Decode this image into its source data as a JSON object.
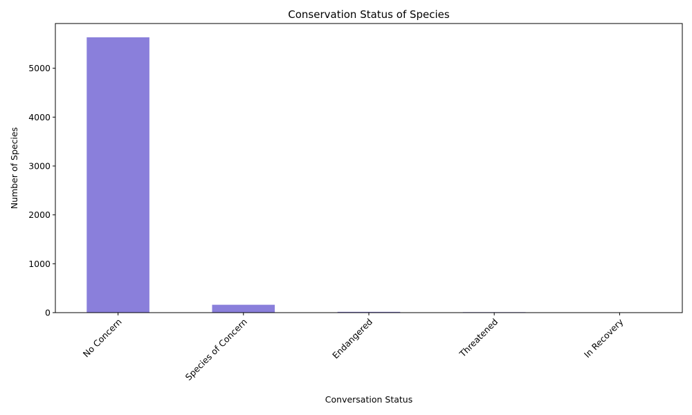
{
  "chart_data": {
    "type": "bar",
    "title": "Conservation Status of Species",
    "xlabel": "Conversation Status",
    "ylabel": "Number of Species",
    "categories": [
      "No Concern",
      "Species of Concern",
      "Endangered",
      "Threatened",
      "In Recovery"
    ],
    "values": [
      5633,
      161,
      16,
      10,
      4
    ],
    "ylim": [
      0,
      5915
    ],
    "yticks": [
      0,
      1000,
      2000,
      3000,
      4000,
      5000
    ],
    "grid": false,
    "legend": "none",
    "bar_color": "#8a7fdb"
  }
}
